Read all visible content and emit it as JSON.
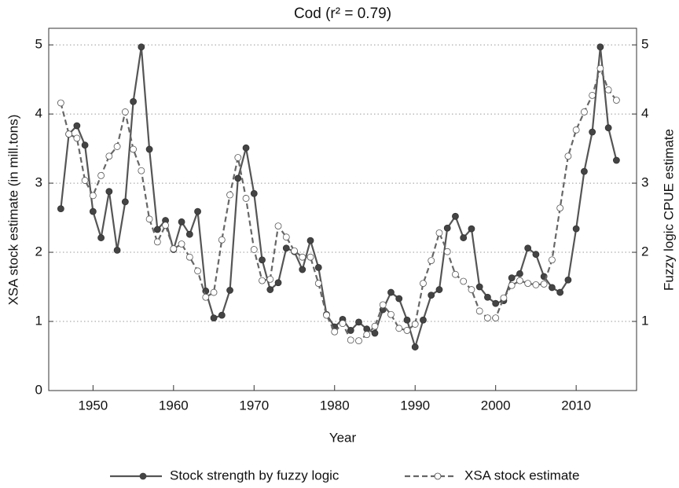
{
  "chart_data": {
    "type": "line",
    "title": "Cod  (r² =  0.79)",
    "x_label": "Year",
    "y_label": "XSA stock estimate (in mill.tons)",
    "y2_label": "Fuzzy logic CPUE estimate",
    "x": [
      1946,
      1947,
      1948,
      1949,
      1950,
      1951,
      1952,
      1953,
      1954,
      1955,
      1956,
      1957,
      1958,
      1959,
      1960,
      1961,
      1962,
      1963,
      1964,
      1965,
      1966,
      1967,
      1968,
      1969,
      1970,
      1971,
      1972,
      1973,
      1974,
      1975,
      1976,
      1977,
      1978,
      1979,
      1980,
      1981,
      1982,
      1983,
      1984,
      1985,
      1986,
      1987,
      1988,
      1989,
      1990,
      1991,
      1992,
      1993,
      1994,
      1995,
      1996,
      1997,
      1998,
      1999,
      2000,
      2001,
      2002,
      2003,
      2004,
      2005,
      2006,
      2007,
      2008,
      2009,
      2010,
      2011,
      2012,
      2013,
      2014,
      2015
    ],
    "series": [
      {
        "name": "Stock strength by fuzzy logic",
        "color": "#555555",
        "marker_color": "#444444",
        "dash": false,
        "axis": "y2",
        "values": [
          2.63,
          3.71,
          3.83,
          3.55,
          2.59,
          2.21,
          2.88,
          2.03,
          2.73,
          4.18,
          4.97,
          3.49,
          2.33,
          2.46,
          2.04,
          2.44,
          2.26,
          2.59,
          1.44,
          1.05,
          1.09,
          1.45,
          3.07,
          3.51,
          2.85,
          1.89,
          1.46,
          1.56,
          2.06,
          2.01,
          1.75,
          2.17,
          1.78,
          1.1,
          0.92,
          1.03,
          0.87,
          0.99,
          0.89,
          0.83,
          1.17,
          1.42,
          1.33,
          1.02,
          0.63,
          1.02,
          1.38,
          1.46,
          2.35,
          2.52,
          2.21,
          2.34,
          1.5,
          1.35,
          1.26,
          1.3,
          1.63,
          1.69,
          2.06,
          1.97,
          1.65,
          1.49,
          1.42,
          1.6,
          2.34,
          3.17,
          3.74,
          4.97,
          3.8,
          3.33
        ]
      },
      {
        "name": "XSA stock estimate",
        "color": "#666666",
        "marker_color": "#ffffff",
        "dash": true,
        "values": [
          4.16,
          3.71,
          3.65,
          3.04,
          2.82,
          3.11,
          3.39,
          3.53,
          4.03,
          3.49,
          3.18,
          2.48,
          2.15,
          2.39,
          2.05,
          2.12,
          1.93,
          1.73,
          1.35,
          1.42,
          2.18,
          2.83,
          3.37,
          2.78,
          2.04,
          1.59,
          1.61,
          2.38,
          2.22,
          2.02,
          1.93,
          1.93,
          1.55,
          1.09,
          0.85,
          0.97,
          0.73,
          0.72,
          0.81,
          0.93,
          1.24,
          1.1,
          0.9,
          0.87,
          0.96,
          1.55,
          1.88,
          2.28,
          2.01,
          1.68,
          1.58,
          1.46,
          1.15,
          1.05,
          1.05,
          1.34,
          1.52,
          1.59,
          1.55,
          1.53,
          1.54,
          1.89,
          2.64,
          3.39,
          3.77,
          4.03,
          4.27,
          4.66,
          4.35,
          4.2
        ]
      }
    ],
    "xlim": [
      1944.5,
      2017.5
    ],
    "xticks": [
      1950,
      1960,
      1970,
      1980,
      1990,
      2000,
      2010
    ],
    "ylim": [
      0,
      5.24
    ],
    "yticks": [
      0,
      1,
      2,
      3,
      4,
      5
    ],
    "y2lim": [
      0,
      5.24
    ],
    "y2ticks": [
      1,
      2,
      3,
      4,
      5
    ],
    "grid": true,
    "legend": "bottom"
  }
}
